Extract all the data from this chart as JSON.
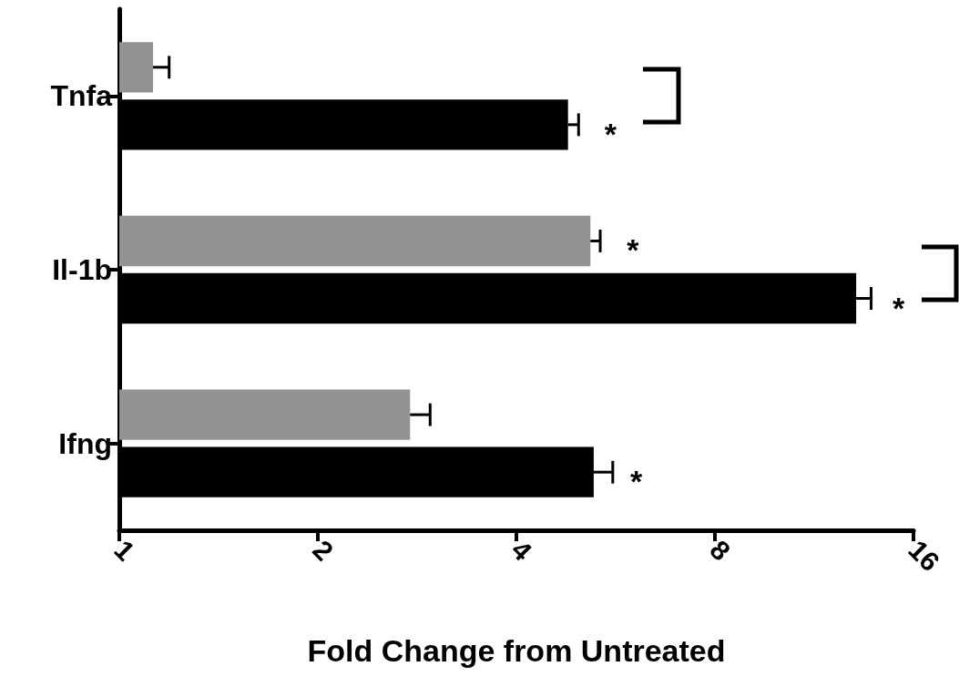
{
  "chart_data": {
    "type": "bar",
    "orientation": "horizontal",
    "xlabel": "Fold Change from Untreated",
    "categories": [
      "Tnfa",
      "Il-1b",
      "Ifng"
    ],
    "series": [
      {
        "color": "#939393",
        "values": [
          1.125,
          5.18,
          2.76
        ],
        "errors": [
          0.065,
          0.18,
          0.2
        ],
        "value_labels": [
          null,
          "*",
          null
        ]
      },
      {
        "color": "#000000",
        "values": [
          4.79,
          13.1,
          5.24
        ],
        "errors": [
          0.18,
          0.7,
          0.36
        ],
        "value_labels": [
          "*",
          "*",
          "*"
        ]
      }
    ],
    "log": "x",
    "xlim": [
      1,
      16
    ],
    "xticks": [
      1,
      2,
      4,
      8,
      16
    ],
    "grid": false
  }
}
